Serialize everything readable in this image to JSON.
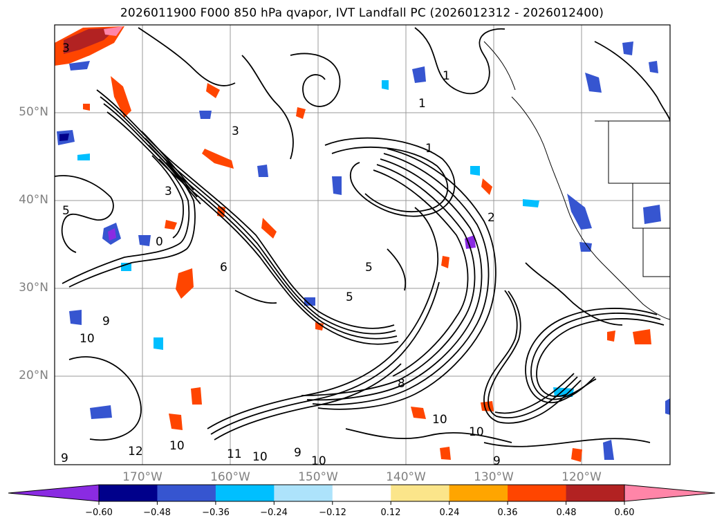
{
  "title": "2026011900 F000 850 hPa qvapor, IVT Landfall PC (2026012312 - 2026012400)",
  "map": {
    "type": "contour-map",
    "projection": "cylindrical",
    "lon_range": [
      -180,
      -110
    ],
    "lat_range": [
      10,
      60
    ],
    "lat_labels": [
      "50°N",
      "40°N",
      "30°N",
      "20°N"
    ],
    "lon_labels": [
      "170°W",
      "160°W",
      "150°W",
      "140°W",
      "130°W",
      "120°W"
    ],
    "contour_labels": [
      "3",
      "1",
      "1",
      "1",
      "3",
      "5",
      "9",
      "10",
      "12",
      "10",
      "11",
      "10",
      "9",
      "10",
      "9",
      "10",
      "8",
      "10",
      "9",
      "6",
      "5",
      "0",
      "2",
      "3",
      "5"
    ]
  },
  "colorbar": {
    "ticks": [
      "−0.60",
      "−0.48",
      "−0.36",
      "−0.24",
      "−0.12",
      "0.12",
      "0.24",
      "0.36",
      "0.48",
      "0.60"
    ],
    "colors": [
      "#8a2be2",
      "#00008b",
      "#3655d0",
      "#00bfff",
      "#ade3fb",
      "#ffffff",
      "#fbe58a",
      "#ffa500",
      "#ff4500",
      "#b22222",
      "#ff85a8",
      "#ff85a8"
    ]
  }
}
